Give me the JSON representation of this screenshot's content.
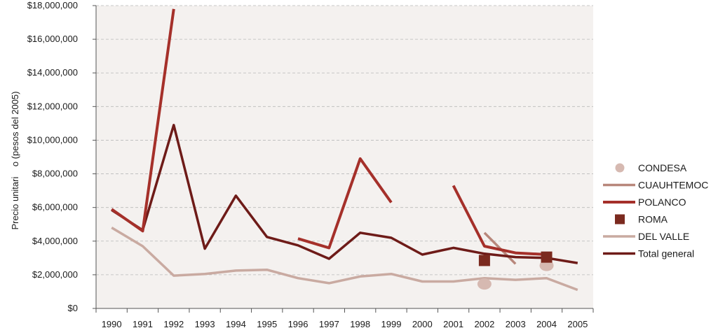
{
  "chart_data": {
    "type": "line",
    "title": "",
    "xlabel": "",
    "ylabel": "Precio unitari    o (pesos del 2005)",
    "ylim": [
      0,
      18000000
    ],
    "y_ticks": [
      0,
      2000000,
      4000000,
      6000000,
      8000000,
      10000000,
      12000000,
      14000000,
      16000000,
      18000000
    ],
    "y_tick_labels": [
      "$0",
      "$2,000,000",
      "$4,000,000",
      "$6,000,000",
      "$8,000,000",
      "$10,000,000",
      "$12,000,000",
      "$14,000,000",
      "$16,000,000",
      "$18,000,000"
    ],
    "categories": [
      "1990",
      "1991",
      "1992",
      "1993",
      "1994",
      "1995",
      "1996",
      "1997",
      "1998",
      "1999",
      "2000",
      "2001",
      "2002",
      "2003",
      "2004",
      "2005"
    ],
    "grid": true,
    "legend_position": "right",
    "plot_background": "#f4f1ef",
    "series": [
      {
        "name": "CONDESA",
        "mark": "circle",
        "color": "#d6b9b1",
        "values": [
          null,
          null,
          null,
          null,
          null,
          null,
          null,
          null,
          null,
          null,
          null,
          null,
          1450000,
          null,
          2550000,
          null
        ]
      },
      {
        "name": "CUAUHTEMOC",
        "mark": "line",
        "color": "#b8877b",
        "values": [
          null,
          null,
          null,
          null,
          null,
          null,
          null,
          null,
          null,
          null,
          null,
          null,
          4500000,
          2650000,
          null,
          null
        ]
      },
      {
        "name": "POLANCO",
        "mark": "line",
        "color": "#a5302a",
        "values": [
          5900000,
          4600000,
          17800000,
          null,
          null,
          null,
          4150000,
          3600000,
          8900000,
          6300000,
          null,
          7300000,
          3700000,
          3300000,
          3200000,
          null
        ]
      },
      {
        "name": "ROMA",
        "mark": "square",
        "color": "#7b2a1f",
        "values": [
          null,
          null,
          null,
          null,
          null,
          null,
          null,
          null,
          null,
          null,
          null,
          null,
          2850000,
          null,
          3050000,
          null
        ]
      },
      {
        "name": "DEL VALLE",
        "mark": "line",
        "color": "#c9aaa1",
        "values": [
          4800000,
          3700000,
          1950000,
          2050000,
          2250000,
          2300000,
          1800000,
          1500000,
          1900000,
          2050000,
          1600000,
          1600000,
          1800000,
          1700000,
          1800000,
          1100000
        ]
      },
      {
        "name": "Total general",
        "mark": "line",
        "color": "#6e1b18",
        "values": [
          5850000,
          4650000,
          10900000,
          3550000,
          6700000,
          4250000,
          3750000,
          2950000,
          4500000,
          4200000,
          3200000,
          3600000,
          3250000,
          3050000,
          3000000,
          2700000
        ]
      }
    ]
  }
}
